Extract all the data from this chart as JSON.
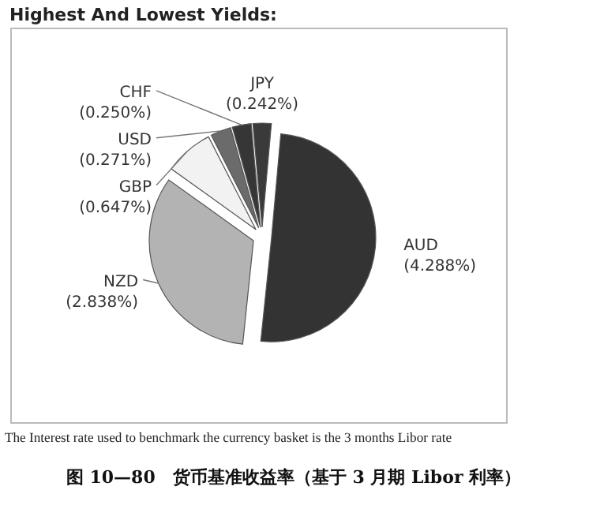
{
  "chart_data": {
    "type": "pie",
    "title": "Highest And Lowest Yields:",
    "categories": [
      "JPY",
      "AUD",
      "NZD",
      "GBP",
      "USD",
      "CHF"
    ],
    "values": [
      0.242,
      4.288,
      2.838,
      0.647,
      0.271,
      0.25
    ],
    "value_labels": [
      "(0.242%)",
      "(4.288%)",
      "(2.838%)",
      "(0.647%)",
      "(0.271%)",
      "(0.250%)"
    ],
    "colors": [
      "#3a3a3a",
      "#333333",
      "#b3b3b3",
      "#f2f2f2",
      "#6b6b6b",
      "#363636"
    ],
    "legend": false,
    "annotations": [
      "The Interest rate used to benchmark the currency basket is the 3 months Libor rate",
      "图 10—80　货币基准收益率（基于 3 月期 Libor 利率）"
    ]
  }
}
